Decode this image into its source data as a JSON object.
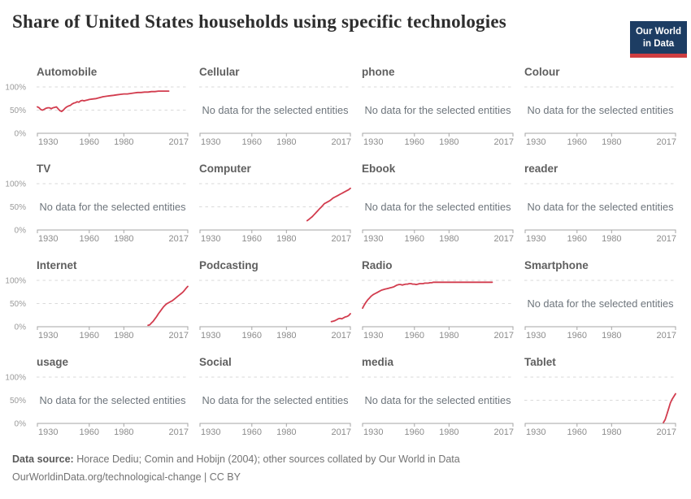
{
  "header": {
    "title": "Share of United States households using specific technologies",
    "logo": {
      "line1": "Our World",
      "line2": "in Data"
    }
  },
  "labels": {
    "no_data": "No data for the selected entities"
  },
  "axis": {
    "x_ticks": [
      "1930",
      "1960",
      "1980",
      "2017"
    ],
    "y_ticks": [
      "0%",
      "50%",
      "100%"
    ]
  },
  "footer": {
    "source_label": "Data source:",
    "source_text": " Horace Dediu; Comin and Hobijn (2004); other sources collated by Our World in Data",
    "license_line": "OurWorldinData.org/technological-change | CC BY"
  },
  "colors": {
    "line": "#d23c4e",
    "grid": "#dadada",
    "axis": "#a5a5a5",
    "tick_label": "#8c8c8c",
    "y_label": "#9a9a9a",
    "no_data_text": "#6e757c",
    "logo_bg": "#1d3d63",
    "logo_bar": "#cf3e41"
  },
  "chart_data": {
    "type": "line",
    "title": "Share of United States households using specific technologies",
    "xlabel": "",
    "ylabel": "",
    "x_range": [
      1930,
      2017
    ],
    "ylim": [
      0,
      100
    ],
    "x_ticks": [
      1930,
      1960,
      1980,
      2017
    ],
    "y_tick_labels": [
      "0%",
      "50%",
      "100%"
    ],
    "grid": "dashed horizontal at 50% and 100%",
    "legend": "none",
    "facets": [
      {
        "title": "Automobile",
        "no_data": false,
        "points": [
          [
            1930,
            57
          ],
          [
            1931,
            55
          ],
          [
            1932,
            51
          ],
          [
            1933,
            50
          ],
          [
            1934,
            52
          ],
          [
            1935,
            54
          ],
          [
            1936,
            55
          ],
          [
            1937,
            55
          ],
          [
            1938,
            53
          ],
          [
            1939,
            55
          ],
          [
            1940,
            56
          ],
          [
            1941,
            57
          ],
          [
            1942,
            53
          ],
          [
            1943,
            49
          ],
          [
            1944,
            47
          ],
          [
            1945,
            50
          ],
          [
            1946,
            54
          ],
          [
            1947,
            57
          ],
          [
            1948,
            59
          ],
          [
            1949,
            60
          ],
          [
            1950,
            63
          ],
          [
            1951,
            65
          ],
          [
            1952,
            66
          ],
          [
            1953,
            68
          ],
          [
            1954,
            67
          ],
          [
            1955,
            70
          ],
          [
            1956,
            71
          ],
          [
            1957,
            70
          ],
          [
            1958,
            71
          ],
          [
            1959,
            72
          ],
          [
            1960,
            73
          ],
          [
            1962,
            74
          ],
          [
            1964,
            75
          ],
          [
            1966,
            77
          ],
          [
            1968,
            79
          ],
          [
            1970,
            80
          ],
          [
            1972,
            81
          ],
          [
            1974,
            82
          ],
          [
            1976,
            83
          ],
          [
            1978,
            84
          ],
          [
            1980,
            85
          ],
          [
            1982,
            85
          ],
          [
            1984,
            86
          ],
          [
            1986,
            87
          ],
          [
            1988,
            88
          ],
          [
            1990,
            88
          ],
          [
            1992,
            89
          ],
          [
            1994,
            89
          ],
          [
            1996,
            90
          ],
          [
            1998,
            90
          ],
          [
            2000,
            91
          ],
          [
            2002,
            91
          ],
          [
            2004,
            91
          ],
          [
            2006,
            91
          ]
        ]
      },
      {
        "title": "Cellular",
        "no_data": true,
        "points": []
      },
      {
        "title": "phone",
        "no_data": true,
        "points": []
      },
      {
        "title": "Colour",
        "no_data": true,
        "points": []
      },
      {
        "title": "TV",
        "no_data": true,
        "points": []
      },
      {
        "title": "Computer",
        "no_data": false,
        "points": [
          [
            1992,
            20
          ],
          [
            1993,
            23
          ],
          [
            1994,
            26
          ],
          [
            1995,
            29
          ],
          [
            1996,
            33
          ],
          [
            1997,
            37
          ],
          [
            1998,
            41
          ],
          [
            1999,
            45
          ],
          [
            2000,
            49
          ],
          [
            2001,
            53
          ],
          [
            2002,
            57
          ],
          [
            2003,
            59
          ],
          [
            2004,
            61
          ],
          [
            2005,
            63
          ],
          [
            2006,
            66
          ],
          [
            2007,
            69
          ],
          [
            2008,
            71
          ],
          [
            2009,
            73
          ],
          [
            2010,
            75
          ],
          [
            2011,
            77
          ],
          [
            2012,
            79
          ],
          [
            2013,
            81
          ],
          [
            2014,
            83
          ],
          [
            2015,
            85
          ],
          [
            2016,
            87
          ],
          [
            2017,
            90
          ]
        ]
      },
      {
        "title": "Ebook",
        "no_data": true,
        "points": []
      },
      {
        "title": "reader",
        "no_data": true,
        "points": []
      },
      {
        "title": "Internet",
        "no_data": false,
        "points": [
          [
            1994,
            3
          ],
          [
            1995,
            4
          ],
          [
            1996,
            8
          ],
          [
            1997,
            12
          ],
          [
            1998,
            17
          ],
          [
            1999,
            22
          ],
          [
            2000,
            28
          ],
          [
            2001,
            33
          ],
          [
            2002,
            38
          ],
          [
            2003,
            43
          ],
          [
            2004,
            47
          ],
          [
            2005,
            50
          ],
          [
            2006,
            52
          ],
          [
            2007,
            54
          ],
          [
            2008,
            56
          ],
          [
            2009,
            59
          ],
          [
            2010,
            62
          ],
          [
            2011,
            65
          ],
          [
            2012,
            68
          ],
          [
            2013,
            71
          ],
          [
            2014,
            74
          ],
          [
            2015,
            78
          ],
          [
            2016,
            83
          ],
          [
            2017,
            87
          ]
        ]
      },
      {
        "title": "Podcasting",
        "no_data": false,
        "points": [
          [
            2006,
            11
          ],
          [
            2007,
            12
          ],
          [
            2008,
            13
          ],
          [
            2009,
            15
          ],
          [
            2010,
            17
          ],
          [
            2011,
            18
          ],
          [
            2012,
            17
          ],
          [
            2013,
            19
          ],
          [
            2014,
            21
          ],
          [
            2015,
            22
          ],
          [
            2016,
            24
          ],
          [
            2017,
            28
          ]
        ]
      },
      {
        "title": "Radio",
        "no_data": false,
        "points": [
          [
            1930,
            40
          ],
          [
            1931,
            47
          ],
          [
            1932,
            53
          ],
          [
            1933,
            58
          ],
          [
            1934,
            62
          ],
          [
            1935,
            66
          ],
          [
            1936,
            69
          ],
          [
            1937,
            71
          ],
          [
            1938,
            73
          ],
          [
            1939,
            75
          ],
          [
            1940,
            77
          ],
          [
            1941,
            79
          ],
          [
            1942,
            80
          ],
          [
            1943,
            81
          ],
          [
            1944,
            82
          ],
          [
            1945,
            83
          ],
          [
            1946,
            84
          ],
          [
            1947,
            85
          ],
          [
            1948,
            86
          ],
          [
            1949,
            88
          ],
          [
            1950,
            90
          ],
          [
            1951,
            91
          ],
          [
            1952,
            91
          ],
          [
            1953,
            90
          ],
          [
            1954,
            91
          ],
          [
            1955,
            92
          ],
          [
            1956,
            92
          ],
          [
            1957,
            93
          ],
          [
            1958,
            93
          ],
          [
            1959,
            92
          ],
          [
            1960,
            92
          ],
          [
            1961,
            91
          ],
          [
            1962,
            92
          ],
          [
            1963,
            93
          ],
          [
            1964,
            93
          ],
          [
            1965,
            93
          ],
          [
            1966,
            94
          ],
          [
            1967,
            94
          ],
          [
            1968,
            94
          ],
          [
            1969,
            95
          ],
          [
            1970,
            95
          ],
          [
            1971,
            96
          ],
          [
            1972,
            96
          ],
          [
            1975,
            96
          ],
          [
            1980,
            96
          ],
          [
            1985,
            96
          ],
          [
            1990,
            96
          ],
          [
            1995,
            96
          ],
          [
            2000,
            96
          ],
          [
            2005,
            96
          ]
        ]
      },
      {
        "title": "Smartphone",
        "no_data": true,
        "points": []
      },
      {
        "title": "usage",
        "no_data": true,
        "points": []
      },
      {
        "title": "Social",
        "no_data": true,
        "points": []
      },
      {
        "title": "media",
        "no_data": true,
        "points": []
      },
      {
        "title": "Tablet",
        "no_data": false,
        "points": [
          [
            2010,
            2
          ],
          [
            2011,
            8
          ],
          [
            2012,
            20
          ],
          [
            2013,
            32
          ],
          [
            2014,
            44
          ],
          [
            2015,
            52
          ],
          [
            2016,
            58
          ],
          [
            2017,
            64
          ]
        ]
      }
    ]
  }
}
